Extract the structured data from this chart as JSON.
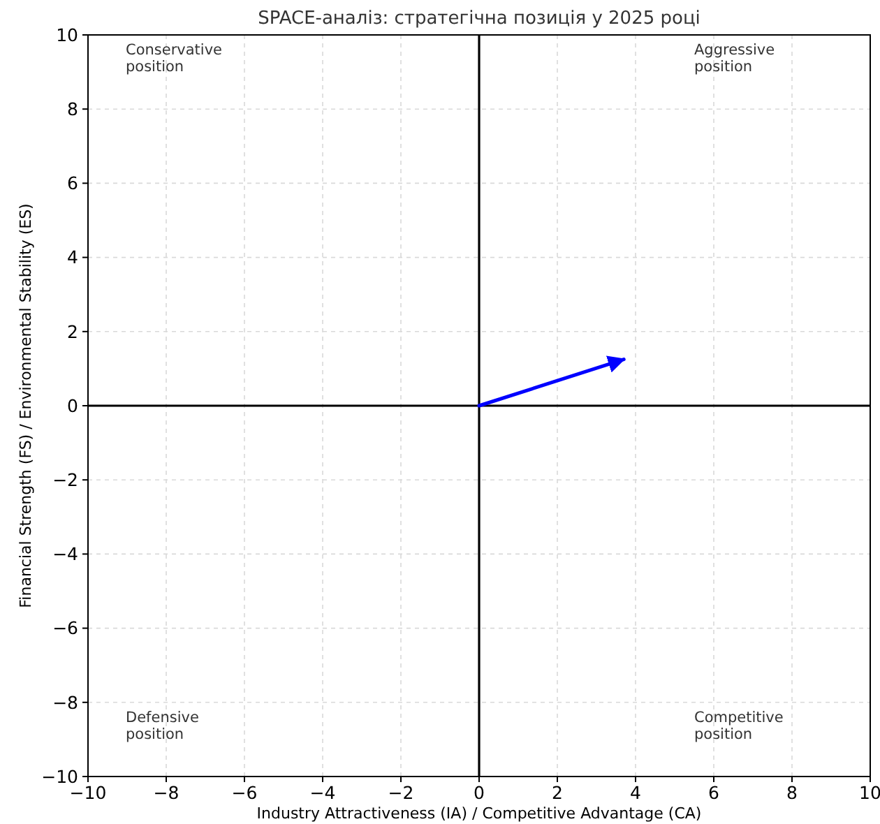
{
  "chart_data": {
    "type": "line",
    "title": "SPACE-аналіз: стратегічна позиція у 2025 році",
    "xlabel": "Industry Attractiveness (IA) / Competitive Advantage (CA)",
    "ylabel": "Financial Strength (FS) / Environmental Stability (ES)",
    "series": [
      {
        "color": "#0000ff",
        "x": [
          0,
          3.7
        ],
        "values": [
          0,
          1.25
        ]
      }
    ],
    "xlim": [
      -10,
      10
    ],
    "ylim": [
      -10,
      10
    ],
    "xticks": [
      {
        "value": -10,
        "label": "−10"
      },
      {
        "value": -8,
        "label": "−8"
      },
      {
        "value": -6,
        "label": "−6"
      },
      {
        "value": -4,
        "label": "−4"
      },
      {
        "value": -2,
        "label": "−2"
      },
      0,
      2,
      4,
      6,
      8,
      10
    ],
    "yticks": [
      {
        "value": -10,
        "label": "−10"
      },
      {
        "value": -8,
        "label": "−8"
      },
      {
        "value": -6,
        "label": "−6"
      },
      {
        "value": -4,
        "label": "−4"
      },
      {
        "value": -2,
        "label": "−2"
      },
      0,
      2,
      4,
      6,
      8,
      10
    ],
    "grid": true,
    "marker": "none",
    "line_style": "solid",
    "annotations": [
      "Conservative\nposition",
      "Aggressive\nposition",
      "Defensive\nposition",
      "Competitive\nposition"
    ]
  }
}
